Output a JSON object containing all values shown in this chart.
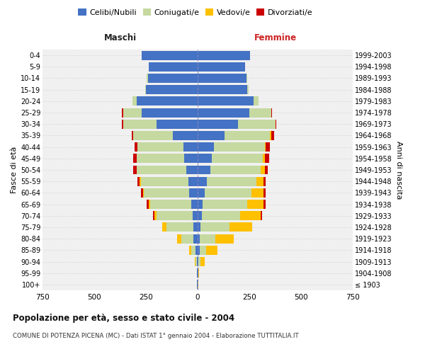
{
  "age_groups": [
    "100+",
    "95-99",
    "90-94",
    "85-89",
    "80-84",
    "75-79",
    "70-74",
    "65-69",
    "60-64",
    "55-59",
    "50-54",
    "45-49",
    "40-44",
    "35-39",
    "30-34",
    "25-29",
    "20-24",
    "15-19",
    "10-14",
    "5-9",
    "0-4"
  ],
  "birth_years": [
    "≤ 1903",
    "1904-1908",
    "1909-1913",
    "1914-1918",
    "1919-1923",
    "1924-1928",
    "1929-1933",
    "1934-1938",
    "1939-1943",
    "1944-1948",
    "1949-1953",
    "1954-1958",
    "1959-1963",
    "1964-1968",
    "1969-1973",
    "1974-1978",
    "1979-1983",
    "1984-1988",
    "1989-1993",
    "1994-1998",
    "1999-2003"
  ],
  "male_celibe": [
    2,
    2,
    5,
    10,
    20,
    20,
    25,
    30,
    40,
    45,
    55,
    65,
    70,
    120,
    200,
    270,
    295,
    250,
    240,
    235,
    270
  ],
  "male_coniugato": [
    0,
    0,
    5,
    20,
    60,
    130,
    175,
    200,
    220,
    230,
    240,
    230,
    220,
    190,
    160,
    90,
    20,
    5,
    5,
    0,
    0
  ],
  "male_vedovo": [
    0,
    0,
    5,
    10,
    20,
    20,
    10,
    5,
    5,
    5,
    0,
    0,
    0,
    0,
    0,
    0,
    0,
    0,
    0,
    0,
    0
  ],
  "male_divorziato": [
    0,
    0,
    0,
    0,
    0,
    0,
    5,
    10,
    10,
    10,
    15,
    15,
    15,
    10,
    5,
    5,
    0,
    0,
    0,
    0,
    0
  ],
  "female_celibe": [
    0,
    2,
    5,
    10,
    10,
    15,
    20,
    25,
    35,
    45,
    60,
    70,
    80,
    130,
    195,
    250,
    270,
    240,
    235,
    230,
    255
  ],
  "female_coniugato": [
    0,
    0,
    10,
    30,
    75,
    140,
    185,
    215,
    225,
    240,
    245,
    245,
    245,
    220,
    180,
    105,
    25,
    5,
    5,
    0,
    0
  ],
  "female_vedovo": [
    2,
    5,
    20,
    55,
    90,
    110,
    100,
    80,
    60,
    35,
    20,
    10,
    5,
    5,
    0,
    0,
    0,
    0,
    0,
    0,
    0
  ],
  "female_divorziato": [
    0,
    0,
    0,
    0,
    0,
    0,
    5,
    10,
    10,
    10,
    15,
    20,
    20,
    15,
    5,
    5,
    0,
    0,
    0,
    0,
    0
  ],
  "color_celibe": "#4472c4",
  "color_coniugato": "#c5d9a0",
  "color_vedovo": "#ffc000",
  "color_divorziato": "#cc0000",
  "title": "Popolazione per età, sesso e stato civile - 2004",
  "subtitle": "COMUNE DI POTENZA PICENA (MC) - Dati ISTAT 1° gennaio 2004 - Elaborazione TUTTITALIA.IT",
  "xlim": 750,
  "xlabel_left": "Maschi",
  "xlabel_right": "Femmine",
  "ylabel_left": "Fasce di età",
  "ylabel_right": "Anni di nascita",
  "legend_labels": [
    "Celibi/Nubili",
    "Coniugati/e",
    "Vedovi/e",
    "Divorziati/e"
  ],
  "bg_color": "#ffffff",
  "plot_bg_color": "#f0f0f0",
  "grid_color": "#cccccc",
  "bar_height": 0.8
}
